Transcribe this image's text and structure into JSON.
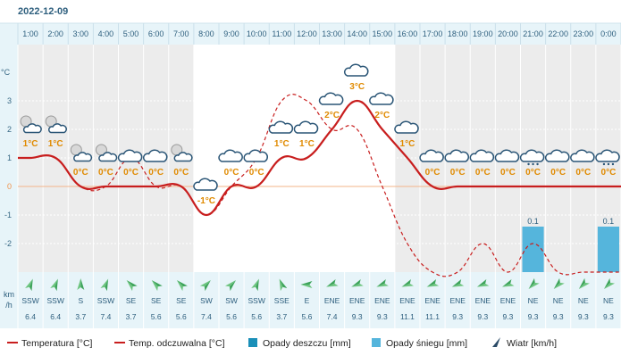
{
  "header": {
    "date": "2022-12-09"
  },
  "y_axis_unit": "°C",
  "wind_unit": [
    "km",
    "/h"
  ],
  "legend": [
    {
      "label": "Temperatura [°C]",
      "icon": "line-solid",
      "color": "#c81e1e"
    },
    {
      "label": "Temp. odczuwalna [°C]",
      "icon": "line-dashed",
      "color": "#c81e1e"
    },
    {
      "label": "Opady deszczu [mm]",
      "icon": "box",
      "color": "#1a8fb8"
    },
    {
      "label": "Opady śniegu [mm]",
      "icon": "box",
      "color": "#55b5dc"
    },
    {
      "label": "Wiatr [km/h]",
      "icon": "wind-arrow",
      "color": "#2a4a66"
    }
  ],
  "chart_data": {
    "type": "line",
    "categories": [
      "1:00",
      "2:00",
      "3:00",
      "4:00",
      "5:00",
      "6:00",
      "7:00",
      "8:00",
      "9:00",
      "10:00",
      "11:00",
      "12:00",
      "13:00",
      "14:00",
      "15:00",
      "16:00",
      "17:00",
      "18:00",
      "19:00",
      "20:00",
      "21:00",
      "22:00",
      "23:00",
      "0:00"
    ],
    "ylim": [
      -3,
      4
    ],
    "y_ticks": [
      -2,
      -1,
      0,
      1,
      2,
      3
    ],
    "grid": true,
    "daylight_range": [
      "8:00",
      "16:00"
    ],
    "series": [
      {
        "name": "Temperatura [°C]",
        "values": [
          1,
          1,
          0,
          0,
          0,
          0,
          0,
          -1,
          0,
          0,
          1,
          1,
          2,
          3,
          2,
          1,
          0,
          0,
          0,
          0,
          0,
          0,
          0,
          0
        ]
      },
      {
        "name": "Temp. odczuwalna [°C]",
        "values": [
          1,
          1,
          0,
          0,
          1,
          0,
          0,
          -1,
          0,
          1,
          3,
          3,
          2,
          2,
          0,
          -2,
          -3,
          -3,
          -2,
          -3,
          -2,
          -3,
          -3,
          -3
        ]
      }
    ],
    "temp_labels": [
      "1°C",
      "1°C",
      "0°C",
      "0°C",
      "0°C",
      "0°C",
      "0°C",
      "-1°C",
      "0°C",
      "0°C",
      "1°C",
      "1°C",
      "2°C",
      "3°C",
      "2°C",
      "1°C",
      "0°C",
      "0°C",
      "0°C",
      "0°C",
      "0°C",
      "0°C",
      "0°C",
      "0°C"
    ],
    "weather_icons": [
      "cloud-partly-night-icon",
      "cloud-partly-night-icon",
      "cloud-partly-night-icon",
      "cloud-partly-night-icon",
      "cloud-icon",
      "cloud-icon",
      "cloud-partly-night-icon",
      "cloud-icon",
      "cloud-icon",
      "cloud-icon",
      "cloud-icon",
      "cloud-icon",
      "cloud-icon",
      "cloud-icon",
      "cloud-icon",
      "cloud-icon",
      "cloud-icon",
      "cloud-icon",
      "cloud-icon",
      "cloud-icon",
      "cloud-snow-icon",
      "cloud-icon",
      "cloud-icon",
      "cloud-snow-icon"
    ],
    "snow_bars": [
      {
        "hour": "21:00",
        "value": 0.1,
        "label": "0.1"
      },
      {
        "hour": "0:00",
        "value": 0.1,
        "label": "0.1"
      }
    ],
    "wind": {
      "directions": [
        "SSW",
        "SSW",
        "S",
        "SSW",
        "SE",
        "SE",
        "SE",
        "SW",
        "SW",
        "SSW",
        "SSE",
        "E",
        "ENE",
        "ENE",
        "ENE",
        "ENE",
        "ENE",
        "ENE",
        "ENE",
        "ENE",
        "NE",
        "NE",
        "NE",
        "NE"
      ],
      "speeds": [
        "6.4",
        "6.4",
        "3.7",
        "7.4",
        "3.7",
        "5.6",
        "5.6",
        "7.4",
        "5.6",
        "5.6",
        "3.7",
        "5.6",
        "7.4",
        "9.3",
        "9.3",
        "11.1",
        "11.1",
        "9.3",
        "9.3",
        "9.3",
        "9.3",
        "9.3",
        "9.3",
        "9.3"
      ]
    }
  }
}
